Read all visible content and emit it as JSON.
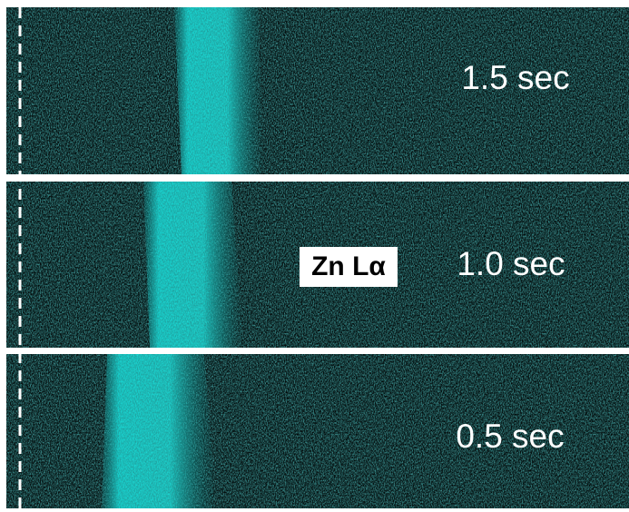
{
  "panels": [
    {
      "label": "1.5 sec"
    },
    {
      "label": "1.0 sec"
    },
    {
      "label": "0.5 sec"
    }
  ],
  "element_label": "Zn Lα"
}
